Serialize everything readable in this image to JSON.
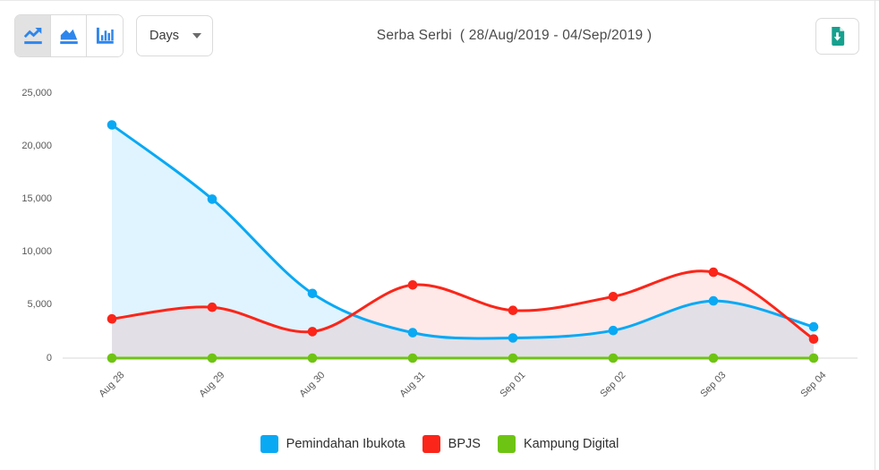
{
  "theme": {
    "accent_blue": "#2E86EC",
    "icon_teal": "#17A08E",
    "selected_button_bg": "#E2E2E2",
    "border_gray": "#DBDBDB",
    "axis_line_color": "#D9D9D9",
    "tick_text_color": "#595959"
  },
  "header": {
    "title": "Serba Serbi  ( 28/Aug/2019 - 04/Sep/2019 )",
    "range_select": {
      "value": "Days"
    },
    "chart_type_buttons": [
      {
        "label": "line-chart",
        "active": true
      },
      {
        "label": "area-chart",
        "active": false
      },
      {
        "label": "bar-chart",
        "active": false
      }
    ],
    "download": {
      "icon": "file-download-icon"
    }
  },
  "chart_data": {
    "type": "line",
    "title": "Serba Serbi",
    "date_range": "28/Aug/2019 - 04/Sep/2019",
    "categories": [
      "Aug 28",
      "Aug 29",
      "Aug 30",
      "Aug 31",
      "Sep 01",
      "Sep 02",
      "Sep 03",
      "Sep 04"
    ],
    "series": [
      {
        "name": "Pemindahan Ibukota",
        "color": "#09A9F4",
        "area": true,
        "fill_opacity": 0.13,
        "values": [
          22000,
          15000,
          6100,
          2400,
          1900,
          2600,
          5400,
          2950
        ]
      },
      {
        "name": "BPJS",
        "color": "#FB2519",
        "area": true,
        "fill_opacity": 0.1,
        "values": [
          3700,
          4800,
          2500,
          6900,
          4500,
          5800,
          8100,
          1800
        ]
      },
      {
        "name": "Kampung Digital",
        "color": "#6EC412",
        "area": false,
        "fill_opacity": 0,
        "values": [
          0,
          0,
          0,
          0,
          0,
          0,
          0,
          0
        ]
      }
    ],
    "xlabel": "",
    "ylabel": "",
    "ylim": [
      0,
      25000
    ],
    "ytick_step": 5000,
    "grid": false,
    "legend_position": "bottom",
    "smooth_curves": true,
    "x_tick_rotation": -45
  }
}
